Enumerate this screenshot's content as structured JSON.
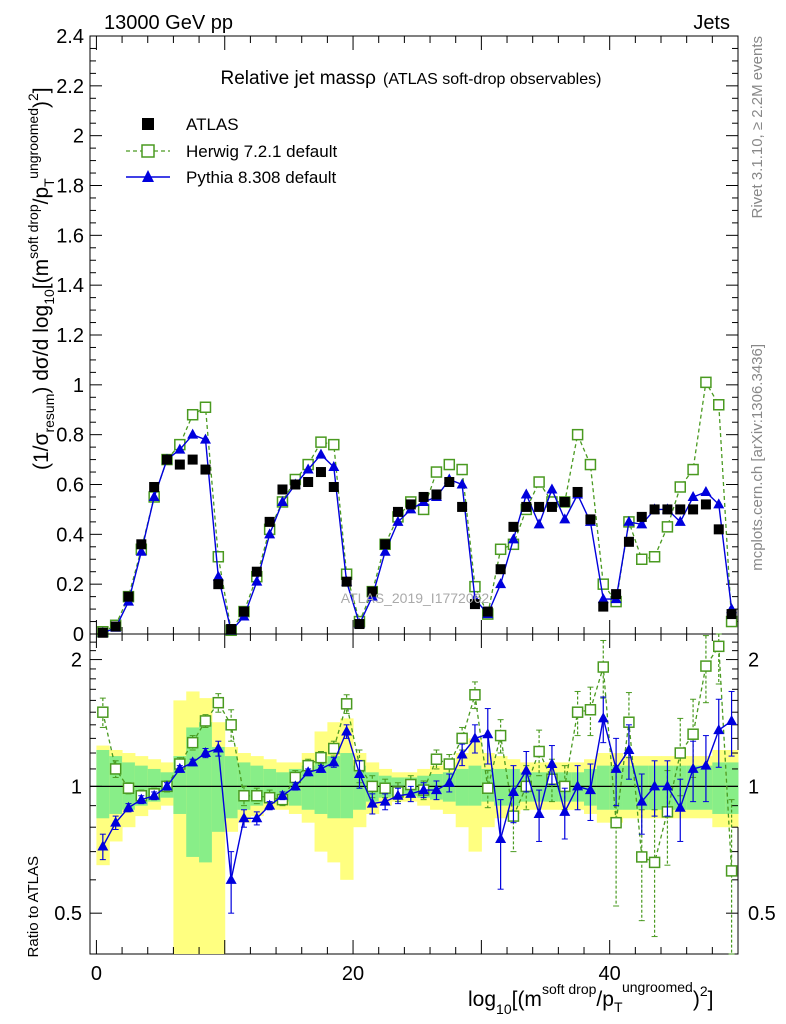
{
  "header": {
    "left": "13000 GeV pp",
    "right": "Jets"
  },
  "side_labels": {
    "rivet": "Rivet 3.1.10, ≥ 2.2M events",
    "mcplots": "mcplots.cern.ch [arXiv:1306.3436]"
  },
  "watermark": "ATLAS_2019_I1772062",
  "title": {
    "main": "Relative jet massρ",
    "sub": "(ATLAS soft-drop observables)"
  },
  "axes": {
    "ylabel_main": "(1/σresum) dσ/d log10[(m^soft drop/pT^ungroomed)2]",
    "ylabel_ratio": "Ratio to ATLAS",
    "xlabel": "log10[(m^soft drop/pT^ungroomed)2]"
  },
  "legend": [
    {
      "label": "ATLAS",
      "color": "#000000",
      "marker": "filled-square"
    },
    {
      "label": "Herwig 7.2.1 default",
      "color": "#4a9a20",
      "marker": "open-square"
    },
    {
      "label": "Pythia 8.308 default",
      "color": "#0000dd",
      "marker": "filled-triangle"
    }
  ],
  "chart_data": [
    {
      "type": "scatter",
      "panel": "main",
      "x": [
        0.5,
        1.5,
        2.5,
        3.5,
        4.5,
        5.5,
        6.5,
        7.5,
        8.5,
        9.5,
        10.5,
        11.5,
        12.5,
        13.5,
        14.5,
        15.5,
        16.5,
        17.5,
        18.5,
        19.5,
        20.5,
        21.5,
        22.5,
        23.5,
        24.5,
        25.5,
        26.5,
        27.5,
        28.5,
        29.5,
        30.5,
        31.5,
        32.5,
        33.5,
        34.5,
        35.5,
        36.5,
        37.5,
        38.5,
        39.5,
        40.5,
        41.5,
        42.5,
        43.5,
        44.5,
        45.5,
        46.5,
        47.5,
        48.5,
        49.5
      ],
      "xlim": [
        -0.5,
        50
      ],
      "ylim": [
        0,
        2.4
      ],
      "yticks": [
        0,
        0.2,
        0.4,
        0.6,
        0.8,
        1,
        1.2,
        1.4,
        1.6,
        1.8,
        2,
        2.2,
        2.4
      ],
      "series": [
        {
          "name": "ATLAS",
          "values": [
            0.005,
            0.03,
            0.15,
            0.36,
            0.59,
            0.7,
            0.68,
            0.7,
            0.66,
            0.2,
            0.02,
            0.09,
            0.25,
            0.45,
            0.58,
            0.6,
            0.61,
            0.65,
            0.59,
            0.21,
            0.04,
            0.17,
            0.36,
            0.49,
            0.52,
            0.55,
            0.56,
            0.61,
            0.51,
            0.12,
            0.09,
            0.26,
            0.43,
            0.51,
            0.51,
            0.51,
            0.53,
            0.57,
            0.46,
            0.11,
            0.16,
            0.37,
            0.47,
            0.5,
            0.5,
            0.5,
            0.5,
            0.52,
            0.42,
            0.08
          ]
        },
        {
          "name": "Herwig 7.2.1 default",
          "values": [
            0.009,
            0.035,
            0.15,
            0.34,
            0.55,
            0.7,
            0.76,
            0.88,
            0.91,
            0.31,
            0.015,
            0.09,
            0.23,
            0.42,
            0.53,
            0.62,
            0.68,
            0.77,
            0.76,
            0.24,
            0.05,
            0.17,
            0.36,
            0.47,
            0.53,
            0.5,
            0.65,
            0.68,
            0.66,
            0.19,
            0.08,
            0.34,
            0.36,
            0.5,
            0.61,
            0.53,
            0.53,
            0.8,
            0.68,
            0.2,
            0.13,
            0.45,
            0.3,
            0.31,
            0.43,
            0.59,
            0.66,
            1.01,
            0.92,
            0.05
          ]
        },
        {
          "name": "Pythia 8.308 default",
          "values": [
            0.004,
            0.025,
            0.13,
            0.33,
            0.55,
            0.7,
            0.74,
            0.8,
            0.78,
            0.23,
            0.013,
            0.07,
            0.21,
            0.4,
            0.53,
            0.6,
            0.66,
            0.72,
            0.67,
            0.21,
            0.04,
            0.15,
            0.33,
            0.45,
            0.5,
            0.53,
            0.55,
            0.62,
            0.6,
            0.14,
            0.08,
            0.2,
            0.38,
            0.56,
            0.44,
            0.58,
            0.46,
            0.56,
            0.45,
            0.14,
            0.14,
            0.45,
            0.44,
            0.5,
            0.5,
            0.45,
            0.55,
            0.57,
            0.52,
            0.1
          ]
        }
      ]
    },
    {
      "type": "scatter",
      "panel": "ratio",
      "x": [
        0.5,
        1.5,
        2.5,
        3.5,
        4.5,
        5.5,
        6.5,
        7.5,
        8.5,
        9.5,
        10.5,
        11.5,
        12.5,
        13.5,
        14.5,
        15.5,
        16.5,
        17.5,
        18.5,
        19.5,
        20.5,
        21.5,
        22.5,
        23.5,
        24.5,
        25.5,
        26.5,
        27.5,
        28.5,
        29.5,
        30.5,
        31.5,
        32.5,
        33.5,
        34.5,
        35.5,
        36.5,
        37.5,
        38.5,
        39.5,
        40.5,
        41.5,
        42.5,
        43.5,
        44.5,
        45.5,
        46.5,
        47.5,
        48.5,
        49.5
      ],
      "xlim": [
        -0.5,
        50
      ],
      "xticks": [
        0,
        20,
        40
      ],
      "ylim": [
        0.4,
        2.3
      ],
      "yticks": [
        0.5,
        1,
        2
      ],
      "scale": "log",
      "series": [
        {
          "name": "Herwig 7.2.1 default",
          "values": [
            1.5,
            1.1,
            0.99,
            0.95,
            0.96,
            1.0,
            1.13,
            1.27,
            1.43,
            1.58,
            1.4,
            0.95,
            0.95,
            0.94,
            0.93,
            1.05,
            1.12,
            1.17,
            1.23,
            1.57,
            1.12,
            1.0,
            0.99,
            0.97,
            1.01,
            0.98,
            1.16,
            1.13,
            1.3,
            1.65,
            0.99,
            1.32,
            0.85,
            1.0,
            1.21,
            1.04,
            1.0,
            1.5,
            1.52,
            1.92,
            0.82,
            1.42,
            0.68,
            0.66,
            0.87,
            1.2,
            1.33,
            1.93,
            2.15,
            0.63
          ]
        },
        {
          "name": "Pythia 8.308 default",
          "values": [
            0.72,
            0.82,
            0.89,
            0.93,
            0.95,
            1.0,
            1.1,
            1.14,
            1.2,
            1.23,
            0.6,
            0.84,
            0.84,
            0.9,
            0.95,
            1.0,
            1.08,
            1.1,
            1.14,
            1.35,
            1.07,
            0.91,
            0.92,
            0.95,
            0.96,
            0.98,
            0.98,
            1.02,
            1.19,
            1.3,
            1.33,
            0.75,
            0.97,
            1.09,
            0.86,
            1.13,
            0.87,
            1.0,
            0.98,
            1.45,
            1.1,
            1.22,
            0.92,
            1.0,
            1.0,
            0.89,
            1.1,
            1.12,
            1.36,
            1.43
          ]
        }
      ],
      "herwig_err": [
        0.12,
        0.05,
        0.03,
        0.03,
        0.03,
        0.03,
        0.04,
        0.05,
        0.05,
        0.08,
        0.12,
        0.05,
        0.04,
        0.04,
        0.03,
        0.04,
        0.04,
        0.04,
        0.05,
        0.08,
        0.1,
        0.06,
        0.05,
        0.05,
        0.05,
        0.05,
        0.06,
        0.06,
        0.08,
        0.12,
        0.1,
        0.12,
        0.15,
        0.12,
        0.15,
        0.12,
        0.12,
        0.18,
        0.2,
        0.3,
        0.3,
        0.25,
        0.2,
        0.22,
        0.22,
        0.25,
        0.28,
        0.35,
        0.4,
        0.3
      ],
      "pythia_err": [
        0.05,
        0.03,
        0.02,
        0.02,
        0.02,
        0.02,
        0.02,
        0.02,
        0.03,
        0.05,
        0.1,
        0.04,
        0.03,
        0.02,
        0.02,
        0.02,
        0.02,
        0.02,
        0.03,
        0.05,
        0.08,
        0.05,
        0.04,
        0.04,
        0.04,
        0.04,
        0.05,
        0.05,
        0.07,
        0.1,
        0.2,
        0.18,
        0.15,
        0.12,
        0.12,
        0.12,
        0.12,
        0.12,
        0.15,
        0.18,
        0.2,
        0.18,
        0.15,
        0.15,
        0.15,
        0.15,
        0.18,
        0.2,
        0.25,
        0.25
      ],
      "band_green": [
        [
          0.84,
          1.22
        ],
        [
          0.86,
          1.18
        ],
        [
          0.88,
          1.14
        ],
        [
          0.9,
          1.12
        ],
        [
          0.92,
          1.1
        ],
        [
          0.94,
          1.08
        ],
        [
          0.86,
          1.18
        ],
        [
          0.68,
          1.38
        ],
        [
          0.66,
          1.42
        ],
        [
          0.78,
          1.24
        ],
        [
          0.84,
          1.18
        ],
        [
          0.88,
          1.14
        ],
        [
          0.9,
          1.12
        ],
        [
          0.92,
          1.1
        ],
        [
          0.92,
          1.08
        ],
        [
          0.9,
          1.1
        ],
        [
          0.88,
          1.12
        ],
        [
          0.86,
          1.14
        ],
        [
          0.84,
          1.18
        ],
        [
          0.84,
          1.2
        ],
        [
          0.88,
          1.12
        ],
        [
          0.92,
          1.08
        ],
        [
          0.94,
          1.06
        ],
        [
          0.95,
          1.05
        ],
        [
          0.95,
          1.05
        ],
        [
          0.94,
          1.06
        ],
        [
          0.93,
          1.07
        ],
        [
          0.92,
          1.08
        ],
        [
          0.9,
          1.1
        ],
        [
          0.9,
          1.12
        ],
        [
          0.92,
          1.1
        ],
        [
          0.9,
          1.1
        ],
        [
          0.9,
          1.1
        ],
        [
          0.92,
          1.08
        ],
        [
          0.92,
          1.08
        ],
        [
          0.92,
          1.08
        ],
        [
          0.92,
          1.08
        ],
        [
          0.92,
          1.08
        ],
        [
          0.9,
          1.1
        ],
        [
          0.88,
          1.12
        ],
        [
          0.88,
          1.12
        ],
        [
          0.88,
          1.12
        ],
        [
          0.88,
          1.12
        ],
        [
          0.88,
          1.12
        ],
        [
          0.88,
          1.12
        ],
        [
          0.88,
          1.12
        ],
        [
          0.88,
          1.12
        ],
        [
          0.88,
          1.12
        ],
        [
          0.86,
          1.14
        ],
        [
          0.86,
          1.14
        ]
      ],
      "band_yellow": [
        [
          0.65,
          1.25
        ],
        [
          0.74,
          1.22
        ],
        [
          0.8,
          1.2
        ],
        [
          0.85,
          1.18
        ],
        [
          0.88,
          1.16
        ],
        [
          0.9,
          1.14
        ],
        [
          0.4,
          1.6
        ],
        [
          0.4,
          1.68
        ],
        [
          0.4,
          1.62
        ],
        [
          0.4,
          1.42
        ],
        [
          0.78,
          1.24
        ],
        [
          0.82,
          1.2
        ],
        [
          0.85,
          1.18
        ],
        [
          0.88,
          1.16
        ],
        [
          0.88,
          1.14
        ],
        [
          0.86,
          1.14
        ],
        [
          0.82,
          1.2
        ],
        [
          0.7,
          1.35
        ],
        [
          0.66,
          1.42
        ],
        [
          0.6,
          1.45
        ],
        [
          0.8,
          1.2
        ],
        [
          0.86,
          1.14
        ],
        [
          0.9,
          1.1
        ],
        [
          0.92,
          1.08
        ],
        [
          0.92,
          1.08
        ],
        [
          0.9,
          1.1
        ],
        [
          0.88,
          1.12
        ],
        [
          0.86,
          1.14
        ],
        [
          0.8,
          1.2
        ],
        [
          0.7,
          1.3
        ],
        [
          0.8,
          1.2
        ],
        [
          0.84,
          1.18
        ],
        [
          0.86,
          1.16
        ],
        [
          0.88,
          1.14
        ],
        [
          0.88,
          1.14
        ],
        [
          0.88,
          1.14
        ],
        [
          0.88,
          1.14
        ],
        [
          0.88,
          1.14
        ],
        [
          0.86,
          1.16
        ],
        [
          0.82,
          1.2
        ],
        [
          0.82,
          1.2
        ],
        [
          0.84,
          1.18
        ],
        [
          0.84,
          1.18
        ],
        [
          0.84,
          1.18
        ],
        [
          0.84,
          1.18
        ],
        [
          0.84,
          1.18
        ],
        [
          0.84,
          1.18
        ],
        [
          0.84,
          1.18
        ],
        [
          0.8,
          1.22
        ],
        [
          0.8,
          1.22
        ]
      ]
    }
  ]
}
